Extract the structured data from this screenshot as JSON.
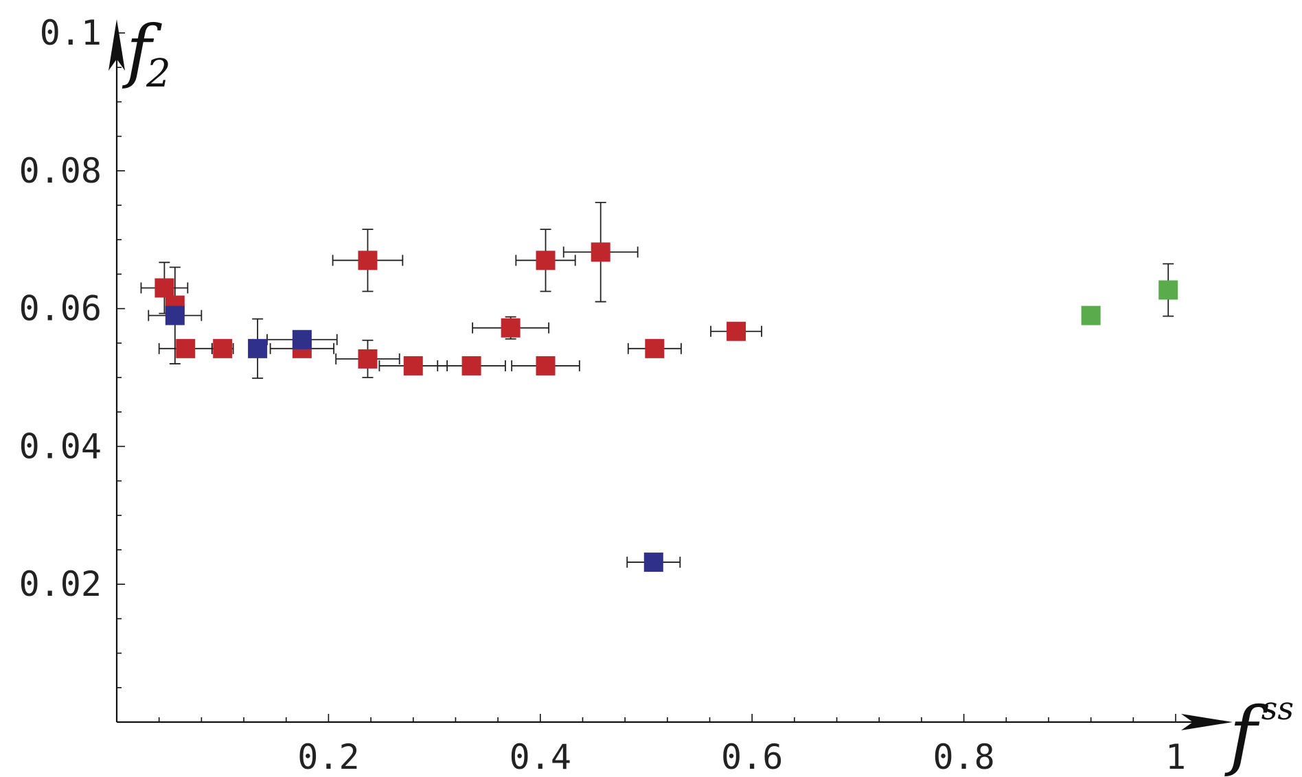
{
  "chart_data": {
    "type": "scatter",
    "xlabel": "f",
    "xlabel_sup": "ss",
    "ylabel": "f",
    "ylabel_sub": "2",
    "xlim": [
      0,
      1.02
    ],
    "ylim": [
      0,
      0.1
    ],
    "x_ticks": [
      {
        "value": 0.2,
        "label": "0.2"
      },
      {
        "value": 0.4,
        "label": "0.4"
      },
      {
        "value": 0.6,
        "label": "0.6"
      },
      {
        "value": 0.8,
        "label": "0.8"
      },
      {
        "value": 1.0,
        "label": "1"
      }
    ],
    "y_ticks": [
      {
        "value": 0.02,
        "label": "0.02"
      },
      {
        "value": 0.04,
        "label": "0.04"
      },
      {
        "value": 0.06,
        "label": "0.06"
      },
      {
        "value": 0.08,
        "label": "0.08"
      },
      {
        "value": 0.1,
        "label": "0.1"
      }
    ],
    "grid": false,
    "series": [
      {
        "color": "#c0272d",
        "points": [
          {
            "x": 0.045,
            "y": 0.063,
            "xerr": 0.022,
            "yerr": 0.0037
          },
          {
            "x": 0.055,
            "y": 0.0605,
            "xerr": 0.0,
            "yerr": 0.0
          },
          {
            "x": 0.065,
            "y": 0.0542,
            "xerr": 0.025,
            "yerr": 0.0012
          },
          {
            "x": 0.1,
            "y": 0.0542,
            "xerr": 0.01,
            "yerr": 0.0012
          },
          {
            "x": 0.175,
            "y": 0.0542,
            "xerr": 0.03,
            "yerr": 0.0012
          },
          {
            "x": 0.237,
            "y": 0.067,
            "xerr": 0.033,
            "yerr": 0.0045
          },
          {
            "x": 0.237,
            "y": 0.0527,
            "xerr": 0.03,
            "yerr": 0.0027
          },
          {
            "x": 0.28,
            "y": 0.0517,
            "xerr": 0.032,
            "yerr": 0.0008
          },
          {
            "x": 0.335,
            "y": 0.0517,
            "xerr": 0.032,
            "yerr": 0.0008
          },
          {
            "x": 0.372,
            "y": 0.0572,
            "xerr": 0.036,
            "yerr": 0.0016
          },
          {
            "x": 0.405,
            "y": 0.067,
            "xerr": 0.028,
            "yerr": 0.0045
          },
          {
            "x": 0.405,
            "y": 0.0517,
            "xerr": 0.032,
            "yerr": 0.0008
          },
          {
            "x": 0.457,
            "y": 0.0682,
            "xerr": 0.035,
            "yerr": 0.0072
          },
          {
            "x": 0.508,
            "y": 0.0542,
            "xerr": 0.025,
            "yerr": 0.0012
          },
          {
            "x": 0.585,
            "y": 0.0567,
            "xerr": 0.024,
            "yerr": 0.0008
          }
        ]
      },
      {
        "color": "#2e3089",
        "points": [
          {
            "x": 0.055,
            "y": 0.059,
            "xerr": 0.025,
            "yerr": 0.007
          },
          {
            "x": 0.133,
            "y": 0.0542,
            "xerr": 0.0,
            "yerr": 0.0043
          },
          {
            "x": 0.175,
            "y": 0.0555,
            "xerr": 0.033,
            "yerr": 0.001
          },
          {
            "x": 0.507,
            "y": 0.0232,
            "xerr": 0.025,
            "yerr": 0.0
          }
        ]
      },
      {
        "color": "#5aab4c",
        "points": [
          {
            "x": 0.92,
            "y": 0.059,
            "xerr": 0.0,
            "yerr": 0.0
          },
          {
            "x": 0.993,
            "y": 0.0627,
            "xerr": 0.0,
            "yerr": 0.0038
          }
        ]
      }
    ]
  }
}
